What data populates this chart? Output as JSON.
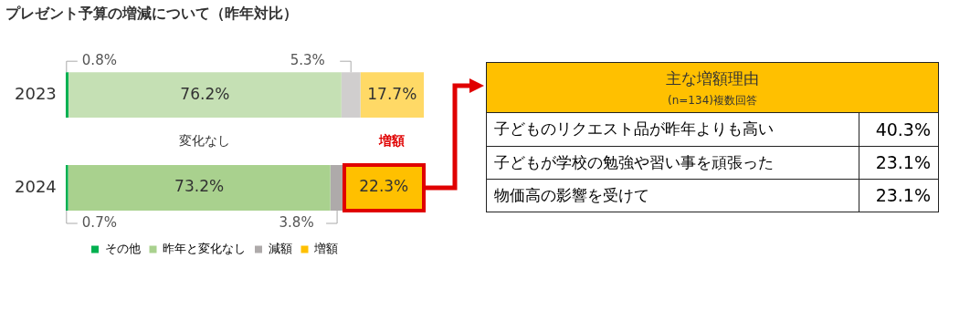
{
  "chart_data": [
    {
      "type": "bar",
      "title": "プレゼント予算の増減について（昨年対比）",
      "orientation": "horizontal",
      "stacked": true,
      "categories": [
        "2023",
        "2024"
      ],
      "series": [
        {
          "name": "その他",
          "color": "#00b050",
          "colors": [
            "#00b050",
            "#00b050"
          ],
          "values": [
            0.8,
            0.7
          ],
          "value_labels": [
            "0.8%",
            "0.7%"
          ]
        },
        {
          "name": "昨年と変化なし",
          "color": "#a9d18e",
          "colors": [
            "#c5e0b4",
            "#a9d18e"
          ],
          "values": [
            76.2,
            73.2
          ],
          "value_labels": [
            "76.2%",
            "73.2%"
          ]
        },
        {
          "name": "減額",
          "color": "#aeaaaa",
          "colors": [
            "#d0cece",
            "#aeaaaa"
          ],
          "values": [
            5.3,
            3.8
          ],
          "value_labels": [
            "5.3%",
            "3.8%"
          ]
        },
        {
          "name": "増額",
          "color": "#ffc000",
          "colors": [
            "#ffd966",
            "#ffc000"
          ],
          "values": [
            17.7,
            22.3
          ],
          "value_labels": [
            "17.7%",
            "22.3%"
          ]
        }
      ],
      "xlim": [
        0,
        100
      ],
      "tick_labels": "y",
      "legend": "bottom",
      "annotations": [
        "変化なし",
        "増額"
      ]
    },
    {
      "type": "other",
      "title": "主な増額理由",
      "subtitle": "(n=134)複数回答",
      "categories": [
        "子どものリクエスト品が昨年よりも高い",
        "子どもが学校の勉強や習い事を頑張った",
        "物価高の影響を受けて"
      ],
      "value_labels": [
        "40.3%",
        "23.1%",
        "23.1%"
      ]
    }
  ]
}
